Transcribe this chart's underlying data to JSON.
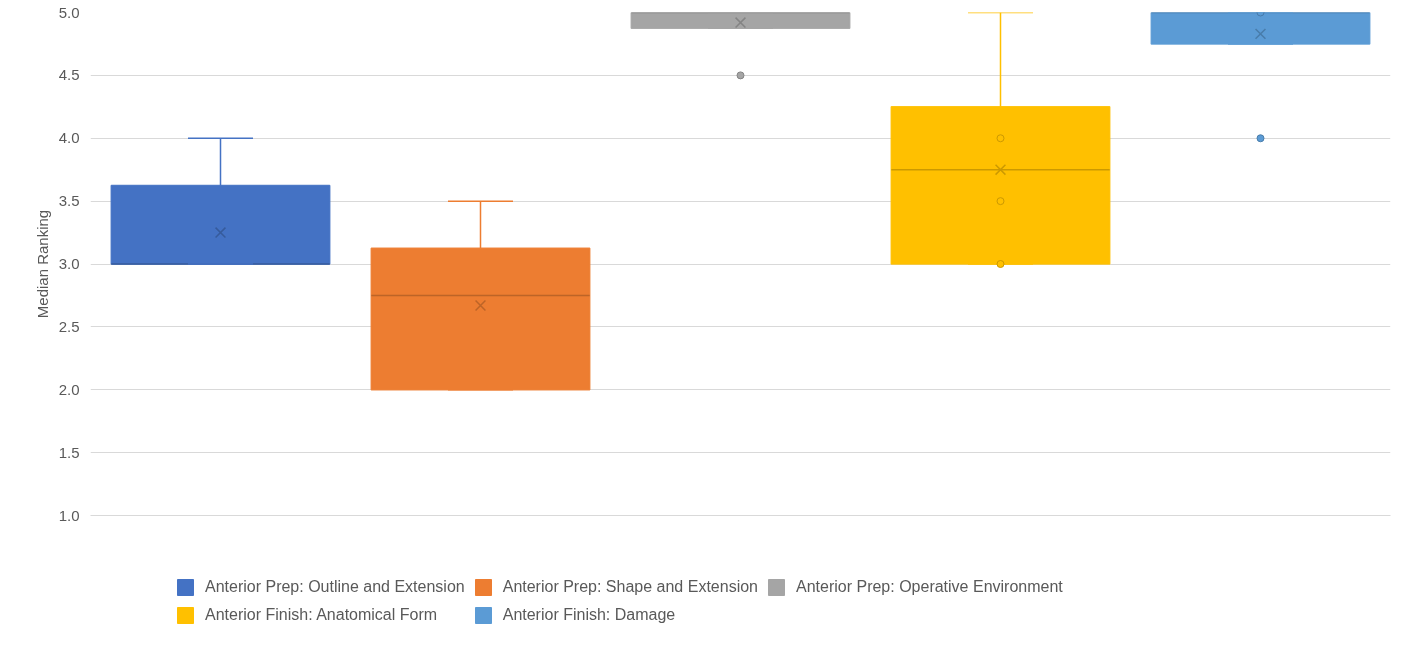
{
  "chart_data": {
    "type": "box",
    "ylabel": "Median Ranking",
    "categories": [
      null
    ],
    "series": [
      {
        "name": "Anterior Prep: Outline and Extension",
        "color": "#4472c4",
        "boxes": [
          {
            "low": 3.0,
            "q1": 3.0,
            "median": 3.0,
            "q3": 3.625,
            "high": 4.0,
            "mean": 3.25
          }
        ]
      },
      {
        "name": "Anterior Prep: Shape and Extension",
        "color": "#ed7d31",
        "boxes": [
          {
            "low": 2.0,
            "q1": 2.0,
            "median": 2.75,
            "q3": 3.125,
            "high": 3.5,
            "mean": 2.67
          }
        ]
      },
      {
        "name": "Anterior Prep: Operative Environment",
        "color": "#a5a5a5",
        "boxes": [
          {
            "low": 4.875,
            "q1": 4.875,
            "median": 5.0,
            "q3": 5.0,
            "high": 5.0,
            "mean": 4.92,
            "outliers": [
              4.5
            ]
          }
        ]
      },
      {
        "name": "Anterior Finish: Anatomical Form",
        "color": "#ffc000",
        "boxes": [
          {
            "low": 3.0,
            "q1": 3.0,
            "median": 3.75,
            "q3": 4.25,
            "high": 5.0,
            "mean": 3.75,
            "outliers": [
              4.0,
              3.5,
              3.0
            ]
          }
        ]
      },
      {
        "name": "Anterior Finish: Damage",
        "color": "#5b9bd5",
        "boxes": [
          {
            "low": 4.75,
            "q1": 4.75,
            "median": 5.0,
            "q3": 5.0,
            "high": 5.0,
            "mean": 4.83,
            "outliers": [
              5.0,
              4.0
            ]
          }
        ]
      }
    ],
    "ylim": [
      1.0,
      5.0
    ],
    "yticks": [
      {
        "value": 1.0,
        "label": "1.0"
      },
      {
        "value": 1.5,
        "label": "1.5"
      },
      {
        "value": 2.0,
        "label": "2.0"
      },
      {
        "value": 2.5,
        "label": "2.5"
      },
      {
        "value": 3.0,
        "label": "3.0"
      },
      {
        "value": 3.5,
        "label": "3.5"
      },
      {
        "value": 4.0,
        "label": "4.0"
      },
      {
        "value": 4.5,
        "label": "4.5"
      },
      {
        "value": 5.0,
        "label": "5.0"
      }
    ],
    "grid": "y",
    "legend": "bottom"
  }
}
